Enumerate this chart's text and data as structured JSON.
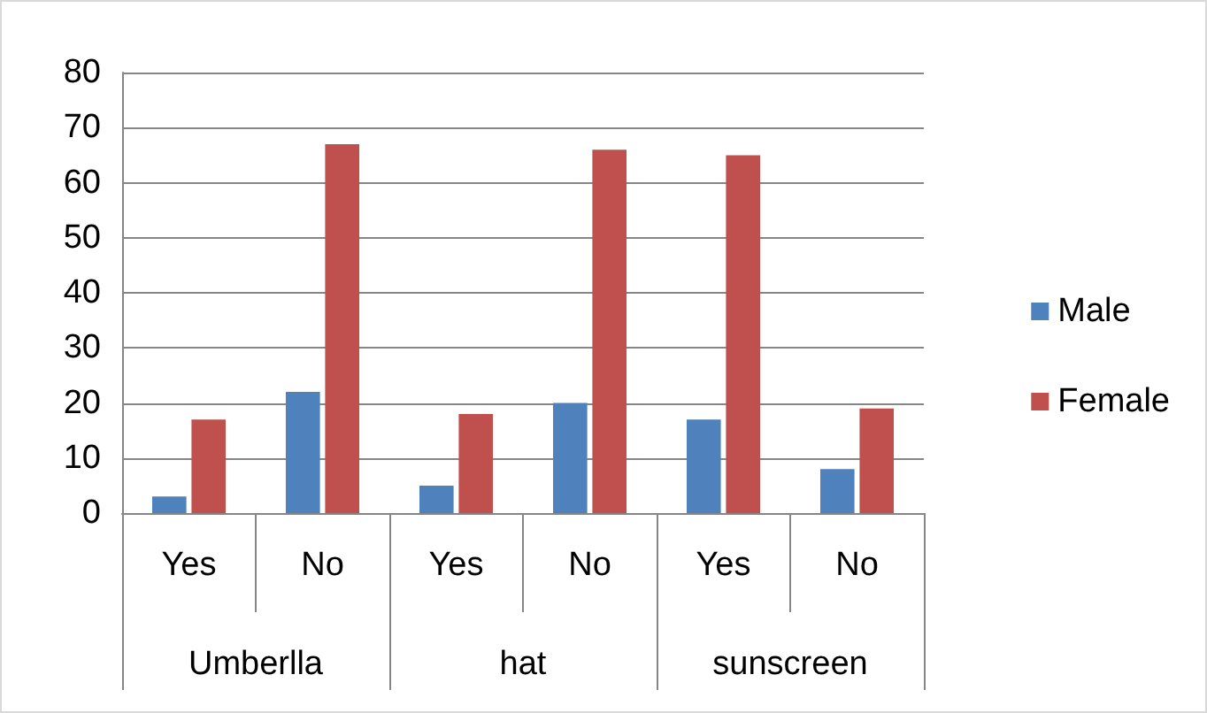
{
  "chart_data": {
    "type": "bar",
    "categories": [
      "Yes",
      "No",
      "Yes",
      "No",
      "Yes",
      "No"
    ],
    "annotations": [
      "Umberlla",
      "hat",
      "sunscreen"
    ],
    "series": [
      {
        "name": "Male",
        "color": "#4f81bd",
        "values": [
          3,
          22,
          5,
          20,
          17,
          8
        ]
      },
      {
        "name": "Female",
        "color": "#c0504d",
        "values": [
          17,
          67,
          18,
          66,
          65,
          19
        ]
      }
    ],
    "ylim": [
      0,
      80
    ],
    "yticks": [
      0,
      10,
      20,
      30,
      40,
      50,
      60,
      70,
      80
    ],
    "grid": "y",
    "legend": "right"
  }
}
